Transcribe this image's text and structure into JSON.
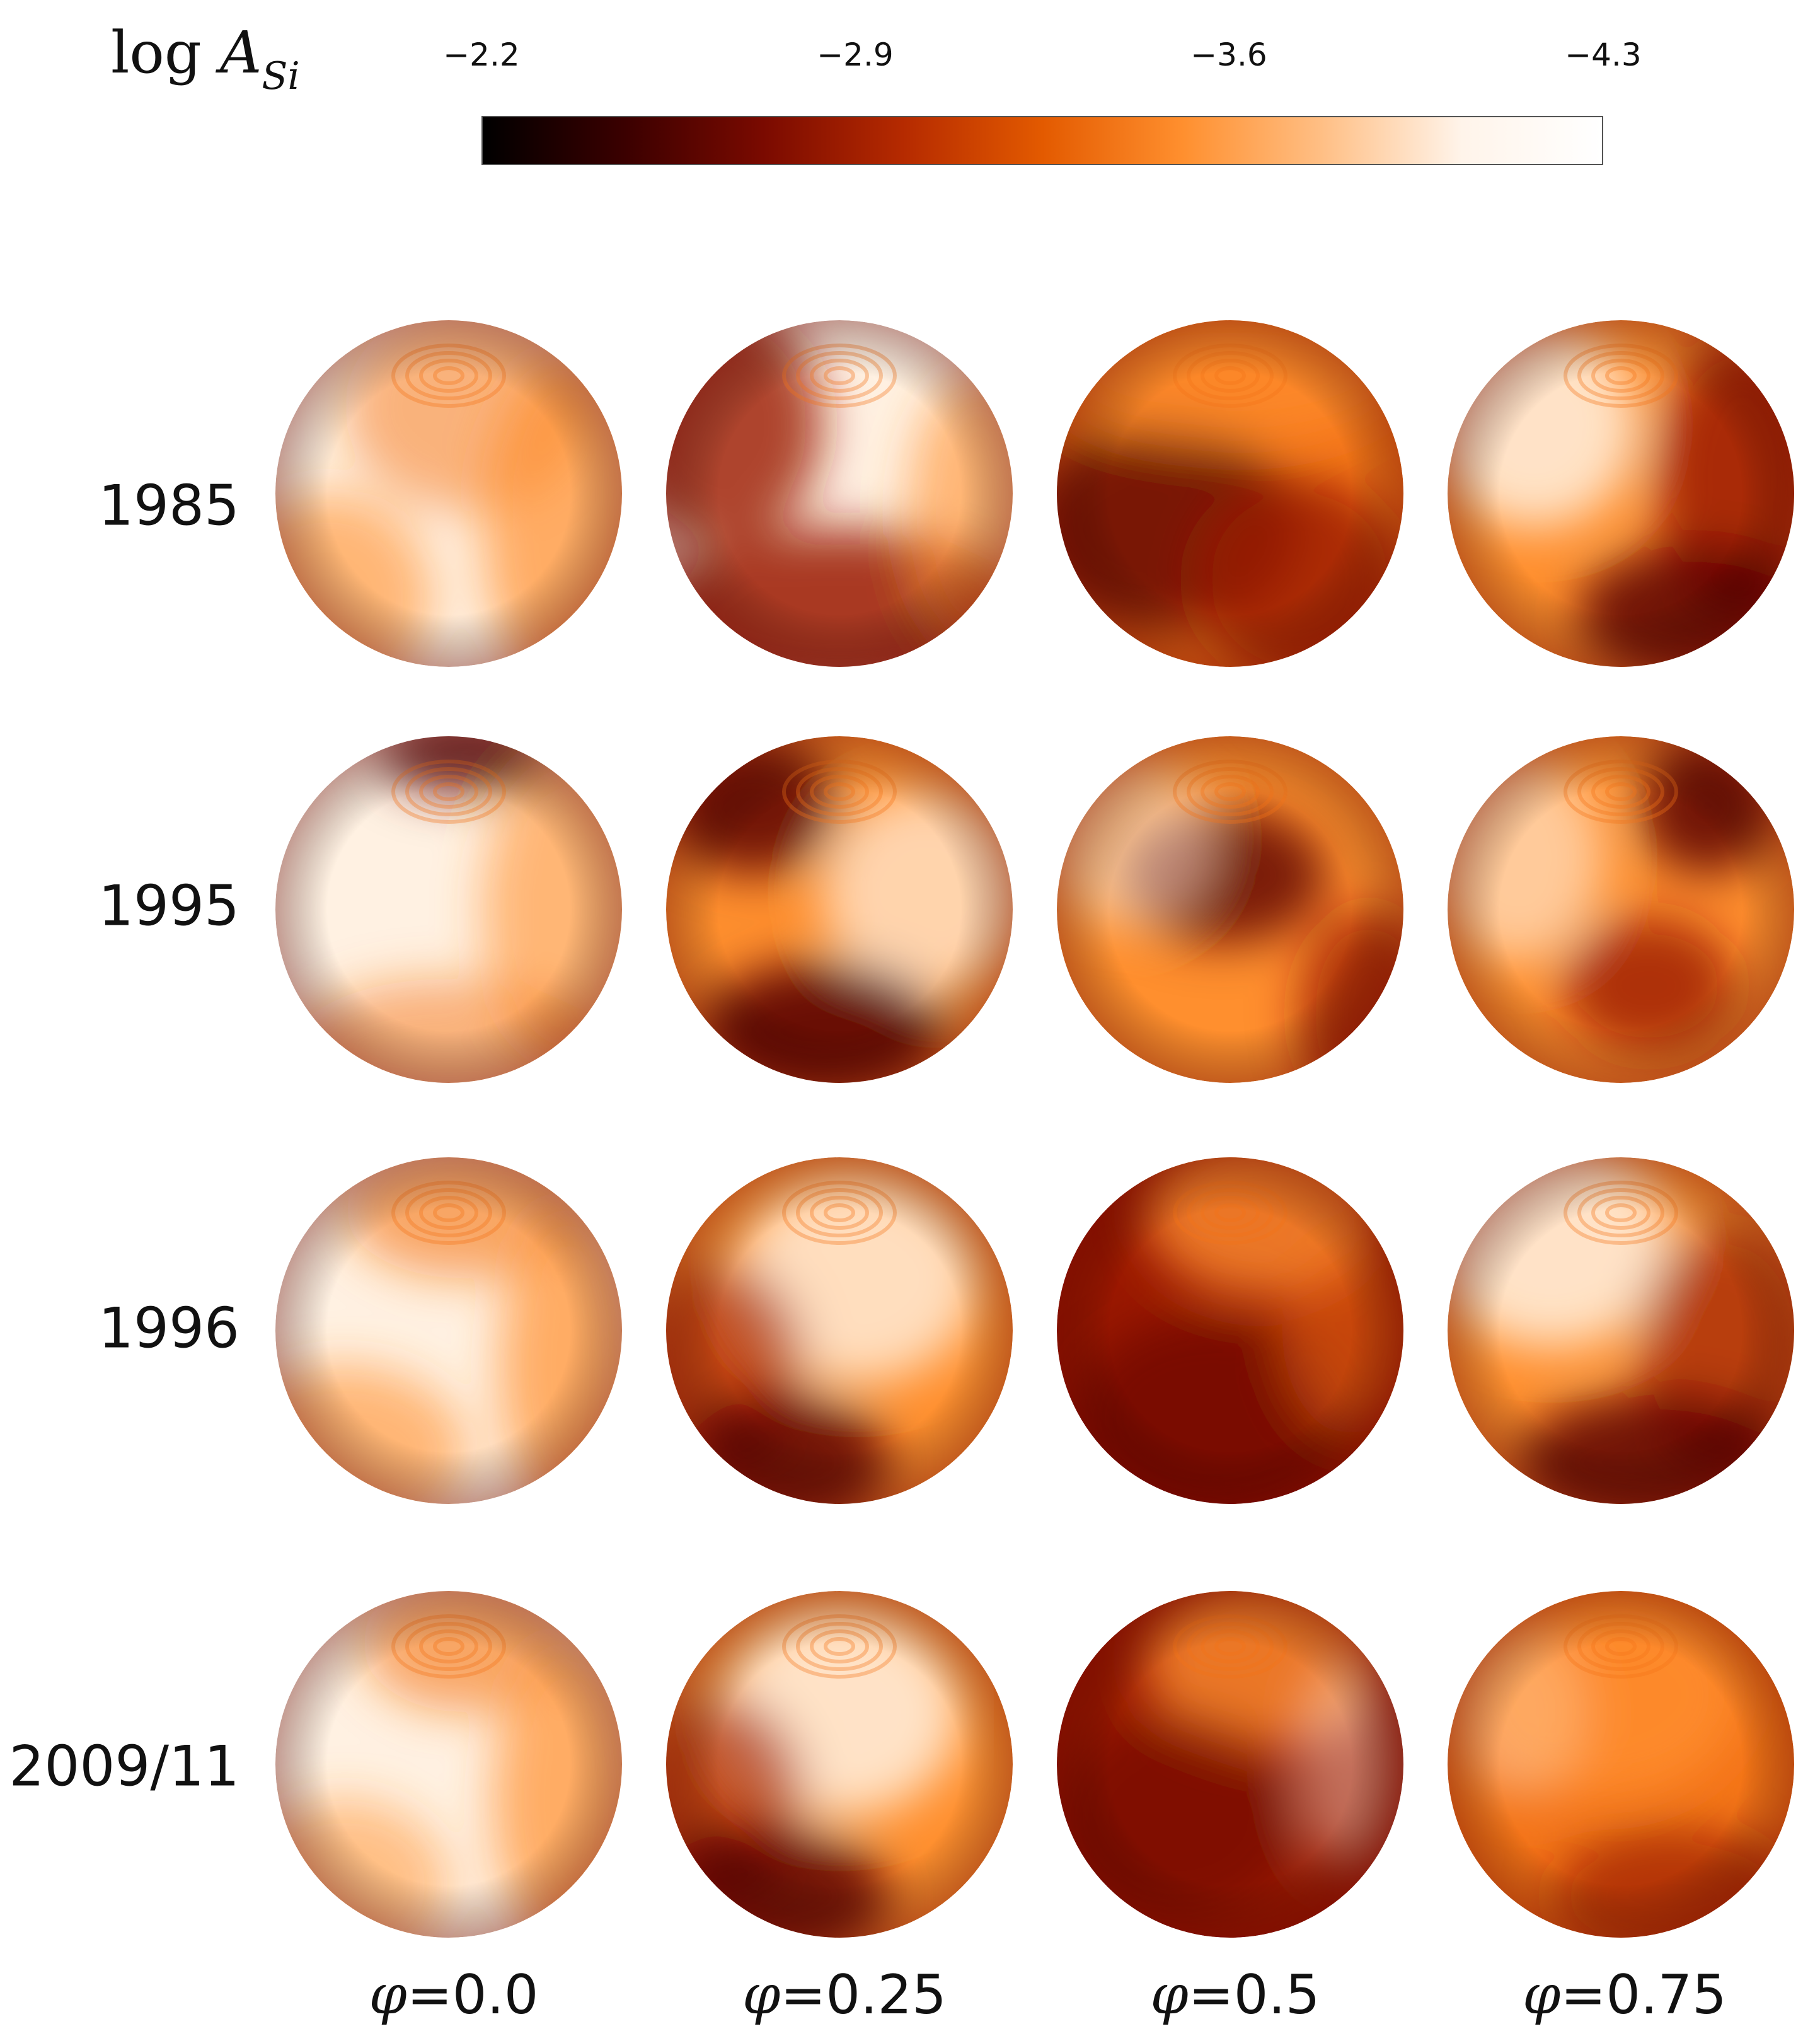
{
  "colorbar": {
    "label_log": "log",
    "label_A": "A",
    "label_sub": "Si",
    "ticks": [
      "−2.2",
      "−2.9",
      "−3.6",
      "−4.3"
    ],
    "tick_values": [
      -2.2,
      -2.9,
      -3.6,
      -4.3
    ],
    "colors": [
      "#000000",
      "#3a0000",
      "#7a0a00",
      "#b52a00",
      "#e35a00",
      "#ff8f2e",
      "#ffbf85",
      "#fff4ea",
      "#ffffff"
    ]
  },
  "rows": [
    {
      "label": "1985"
    },
    {
      "label": "1995"
    },
    {
      "label": "1996"
    },
    {
      "label": "2009/11"
    }
  ],
  "phases": [
    {
      "label": "=0.0",
      "symbol": "φ"
    },
    {
      "label": "=0.25",
      "symbol": "φ"
    },
    {
      "label": "=0.5",
      "symbol": "φ"
    },
    {
      "label": "=0.75",
      "symbol": "φ"
    }
  ],
  "map_colors": {
    "light": "#fff1e2",
    "mid": "#ff8f2e",
    "orange": "#f47418",
    "dark": "#9a1800",
    "darkest": "#5a0000"
  }
}
